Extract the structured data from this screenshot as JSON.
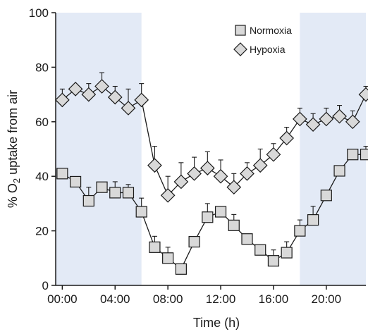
{
  "chart_data": {
    "type": "line",
    "xlabel": "Time (h)",
    "ylabel_prefix": "% O",
    "ylabel_sub": "2",
    "ylabel_suffix": " uptake from air",
    "xlim": [
      -0.5,
      23
    ],
    "ylim": [
      0,
      100
    ],
    "x_ticks": [
      0,
      4,
      8,
      12,
      16,
      20
    ],
    "x_tick_labels": [
      "00:00",
      "04:00",
      "08:00",
      "12:00",
      "16:00",
      "20:00"
    ],
    "y_ticks": [
      0,
      20,
      40,
      60,
      80,
      100
    ],
    "y_tick_labels": [
      "0",
      "20",
      "40",
      "60",
      "80",
      "100"
    ],
    "shaded_intervals": [
      [
        -0.5,
        6
      ],
      [
        18,
        23
      ]
    ],
    "legend_position": "top-right",
    "x": [
      0,
      1,
      2,
      3,
      4,
      5,
      6,
      7,
      8,
      9,
      10,
      11,
      12,
      13,
      14,
      15,
      16,
      17,
      18,
      19,
      20,
      21,
      22,
      23
    ],
    "series": [
      {
        "name": "Normoxia",
        "marker": "square",
        "values": [
          41,
          38,
          31,
          36,
          34,
          34,
          27,
          14,
          10,
          6,
          16,
          25,
          27,
          22,
          17,
          13,
          9,
          12,
          20,
          24,
          33,
          42,
          48,
          48
        ],
        "errors": [
          0,
          0,
          5,
          0,
          4,
          3,
          5,
          4,
          4,
          0,
          0,
          5,
          0,
          4,
          0,
          0,
          4,
          4,
          4,
          5,
          0,
          0,
          0,
          3
        ]
      },
      {
        "name": "Hypoxia",
        "marker": "diamond",
        "values": [
          68,
          72,
          70,
          73,
          69,
          65,
          68,
          44,
          33,
          38,
          41,
          43,
          40,
          36,
          41,
          44,
          48,
          54,
          61,
          59,
          61,
          62,
          60,
          70
        ],
        "errors": [
          4,
          0,
          4,
          5,
          4,
          7,
          6,
          7,
          7,
          7,
          6,
          6,
          6,
          5,
          4,
          6,
          4,
          4,
          4,
          4,
          4,
          4,
          4,
          3
        ]
      }
    ]
  },
  "colors": {
    "shade": "#e3eaf6",
    "marker_fill": "#d9d9d9",
    "line": "#1a1a1a",
    "axis": "#1a1a1a"
  }
}
